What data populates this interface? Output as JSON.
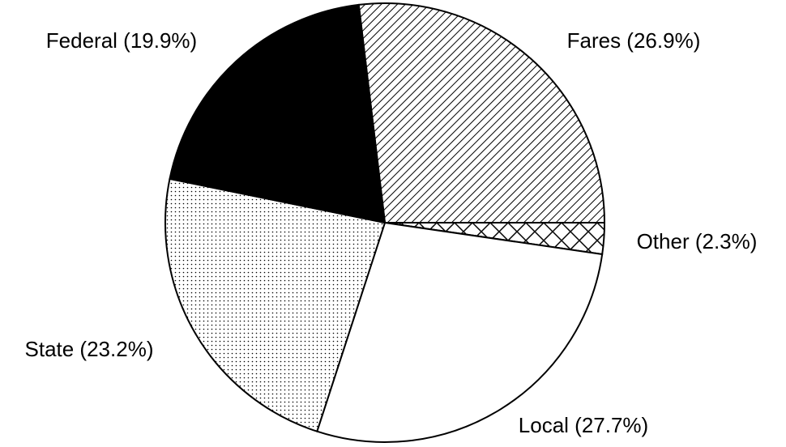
{
  "chart_data": {
    "type": "pie",
    "categories": [
      "Fares (26.9%)",
      "Other (2.3%)",
      "Local (27.7%)",
      "State (23.2%)",
      "Federal (19.9%)"
    ],
    "values": [
      26.9,
      2.3,
      27.7,
      23.2,
      19.9
    ],
    "patterns": [
      "hatch",
      "cross",
      "none",
      "dots",
      "solid"
    ]
  }
}
